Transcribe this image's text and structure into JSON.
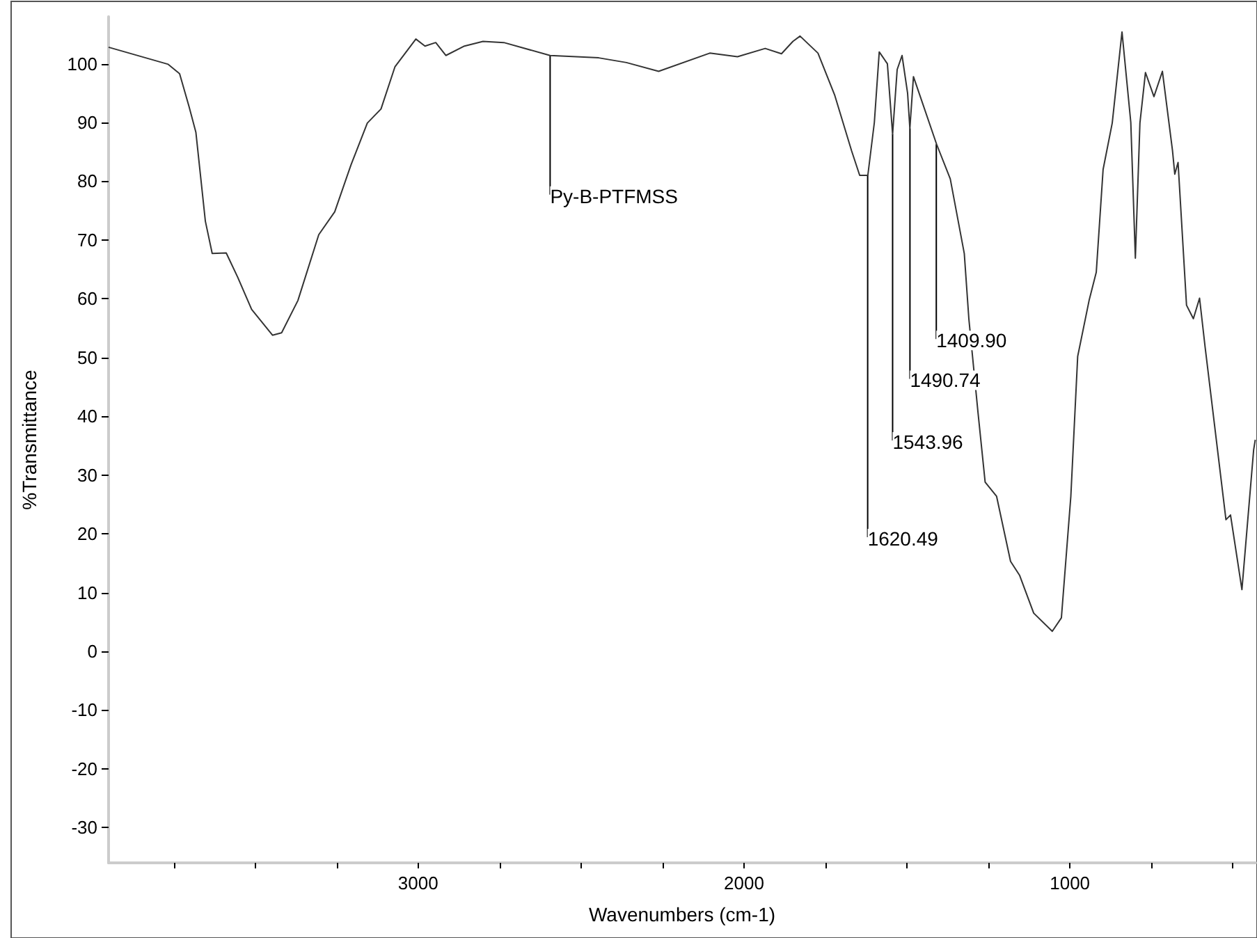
{
  "chart_data": {
    "type": "line",
    "xlabel": "Wavenumbers (cm-1)",
    "ylabel": "%Transmittance",
    "x": [
      3950,
      3767,
      3732,
      3703,
      3682,
      3653,
      3632,
      3589,
      3554,
      3511,
      3447,
      3419,
      3369,
      3305,
      3256,
      3206,
      3156,
      3114,
      3071,
      3007,
      2979,
      2946,
      2915,
      2858,
      2801,
      2737,
      2595,
      2446,
      2361,
      2262,
      2105,
      2020,
      1935,
      1885,
      1850,
      1828,
      1773,
      1722,
      1670,
      1645,
      1620,
      1600,
      1585,
      1560,
      1544,
      1530,
      1515,
      1498,
      1491,
      1480,
      1409,
      1367,
      1324,
      1310,
      1282,
      1260,
      1225,
      1182,
      1154,
      1111,
      1054,
      1026,
      997,
      976,
      941,
      919,
      898,
      870,
      840,
      813,
      799,
      785,
      768,
      742,
      716,
      685,
      678,
      668,
      642,
      621,
      602,
      585,
      521,
      507,
      472,
      436,
      431
    ],
    "values": [
      102.8,
      99.9,
      98.3,
      92.7,
      88.3,
      73.2,
      67.7,
      67.8,
      63.7,
      58.2,
      53.8,
      54.2,
      59.7,
      70.9,
      74.8,
      82.8,
      89.9,
      92.3,
      99.5,
      104.2,
      103,
      103.6,
      101.4,
      103,
      103.8,
      103.6,
      101.4,
      101,
      100.2,
      98.7,
      101.8,
      101.2,
      102.6,
      101.7,
      103.8,
      104.7,
      101.8,
      94.7,
      85.2,
      81,
      81,
      90,
      102,
      100,
      88,
      99,
      101.4,
      95,
      89,
      97.8,
      86.3,
      80.4,
      67.7,
      56.6,
      40.7,
      28.8,
      26.4,
      15.3,
      12.9,
      6.5,
      3.4,
      5.7,
      26.4,
      50.2,
      59.7,
      64.5,
      82,
      89.9,
      105.4,
      90,
      66.9,
      89.9,
      98.5,
      94.4,
      98.7,
      85.2,
      81.2,
      83.2,
      58.9,
      56.6,
      60.1,
      51.8,
      22.4,
      23.2,
      10.5,
      34.3,
      36
    ],
    "color": "#333333",
    "marker": "none",
    "line_style": "solid",
    "grid": false,
    "xlim": [
      3950,
      430
    ],
    "ylim": [
      -36,
      108
    ],
    "xticks": [
      {
        "value": 3750,
        "label": null
      },
      {
        "value": 3500,
        "label": null
      },
      {
        "value": 3250,
        "label": null
      },
      3000,
      {
        "value": 2750,
        "label": null
      },
      {
        "value": 2500,
        "label": null
      },
      {
        "value": 2250,
        "label": null
      },
      2000,
      {
        "value": 1750,
        "label": null
      },
      {
        "value": 1500,
        "label": null
      },
      {
        "value": 1250,
        "label": null
      },
      1000,
      {
        "value": 750,
        "label": null
      },
      {
        "value": 500,
        "label": null
      }
    ],
    "yticks": [
      -30,
      -20,
      -10,
      0,
      10,
      20,
      30,
      40,
      50,
      60,
      70,
      80,
      90,
      100
    ],
    "annotations": [
      {
        "text": "Py-B-PTFMSS",
        "x": 2595,
        "y": 101.4
      },
      {
        "text": "1409.90",
        "x": 1409.9,
        "y": 86.3
      },
      {
        "text": "1490.74",
        "x": 1490.74,
        "y": 89
      },
      {
        "text": "1543.96",
        "x": 1543.96,
        "y": 88
      },
      {
        "text": "1620.49",
        "x": 1620.49,
        "y": 81
      }
    ]
  }
}
